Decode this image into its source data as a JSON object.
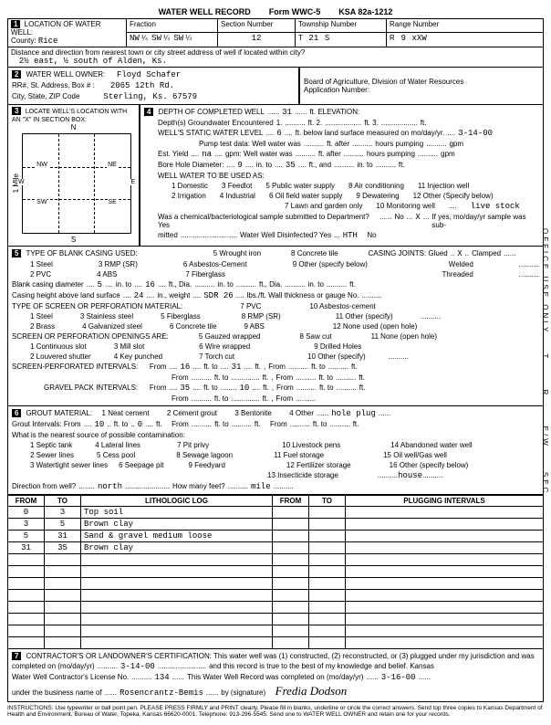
{
  "form": {
    "title": "WATER WELL RECORD",
    "form_no": "Form WWC-5",
    "statute": "KSA 82a-1212"
  },
  "loc": {
    "county_label": "County:",
    "county": "Rice",
    "fraction_label": "Fraction",
    "fraction1": "NW",
    "f1q": "¼",
    "fraction2": "SW",
    "f2q": "¼",
    "fraction3": "SW",
    "f3q": "¼",
    "section_label": "Section Number",
    "section": "12",
    "township_label": "Township Number",
    "township_t": "T",
    "township": "21",
    "township_s": "S",
    "range_label": "Range Number",
    "range_r": "R",
    "range": "9",
    "range_w": "xXW",
    "distance_label": "Distance and direction from nearest town or city street address of well if located within city?",
    "distance": "2½ east, ½ south of Alden, Ks."
  },
  "owner": {
    "label": "WATER WELL OWNER:",
    "rr_label": "RR#, St. Address, Box # :",
    "city_label": "City, State, ZIP Code",
    "name": "Floyd Schafer",
    "address": "2065 12th Rd.",
    "citystate": "Sterling, Ks.  67579",
    "board": "Board of Agriculture, Division of Water Resources",
    "app_label": "Application Number:"
  },
  "sec3": {
    "label": "LOCATE WELL'S LOCATION WITH AN \"X\" IN SECTION BOX:",
    "n": "N",
    "s": "S",
    "e": "E",
    "w": "W",
    "nw": "NW",
    "ne": "NE",
    "sw": "SW",
    "se": "SE",
    "mile": "1 Mile"
  },
  "depth": {
    "label": "DEPTH OF COMPLETED WELL",
    "completed": "31",
    "elev_label": "ft. ELEVATION:",
    "groundwater_label": "Depth(s) Groundwater Encountered",
    "g1": "1.",
    "g2": "ft. 2.",
    "g3": "ft. 3.",
    "g_end": "ft.",
    "static_label": "WELL'S STATIC WATER LEVEL",
    "static": "6",
    "static_suffix": "ft. below land surface measured on mo/day/yr.",
    "date": "3-14-00",
    "pump_label": "Pump test data:  Well water was",
    "pump_suffix": "ft. after",
    "hours": "hours pumping",
    "gpm": "gpm",
    "est_label": "Est. Yield",
    "na": "na",
    "gpm2": "gpm:  Well water was",
    "bore_label": "Bore Hole Diameter:",
    "bore1": "9",
    "bore1s": "in. to",
    "bore2": "35",
    "bore2s": "ft., and",
    "bore3": "in. to",
    "bore4": "ft.",
    "use_label": "WELL WATER TO BE USED AS:",
    "use1": "1 Domestic",
    "use2": "2 Irrigation",
    "use3": "3 Feedlot",
    "use4": "4 Industrial",
    "use5": "5 Public water supply",
    "use6": "6 Oil field water supply",
    "use7": "7 Lawn and garden only",
    "use8": "8 Air conditioning",
    "use9": "9 Dewatering",
    "use10": "10 Monitoring well",
    "use11": "11 Injection well",
    "use12": "12 Other (Specify below)",
    "use_other": "live stock",
    "chem_label": "Was a chemical/bacteriological sample submitted to Department?  Yes",
    "no": "No",
    "x": "X",
    "yes_suffix": "If yes, mo/day/yr sample was sub-",
    "mitted": "mitted",
    "disinfect": "Water Well Disinfected?  Yes",
    "hth": "HTH",
    "no2": "No"
  },
  "casing": {
    "label": "TYPE OF BLANK CASING USED:",
    "c1": "1 Steel",
    "c2": "2 PVC",
    "c3": "3 RMP (SR)",
    "c4": "4 ABS",
    "c5": "5 Wrought iron",
    "c6": "6 Asbestos-Cement",
    "c7": "7 Fiberglass",
    "c8": "8 Concrete tile",
    "c9": "9 Other (specify below)",
    "joints_label": "CASING JOINTS: Glued",
    "jx": "X",
    "clamped": "Clamped",
    "welded": "Welded",
    "threaded": "Threaded",
    "blank_label": "Blank casing diameter",
    "bd": "5",
    "bd_in": "in. to",
    "bd2": "16",
    "bd_ft": "ft., Dia.",
    "bd_in2": "in. to",
    "bd_ft2": "ft., Dia.",
    "bd_in3": "in. to",
    "bd_ft3": "ft.",
    "height_label": "Casing height above land surface",
    "h": "24",
    "h_in": "in., weight",
    "sdr": "SDR 26",
    "lbs": "lbs./ft. Wall thickness or gauge No.",
    "screen_label": "TYPE OF SCREEN OR PERFORATION MATERIAL:",
    "s1": "1 Steel",
    "s2": "2 Brass",
    "s3": "3 Stainless steel",
    "s4": "4 Galvanized steel",
    "s5": "5 Fiberglass",
    "s6": "6 Concrete tile",
    "s7": "7 PVC",
    "s8": "8 RMP (SR)",
    "s9": "9 ABS",
    "s10": "10 Asbestos-cement",
    "s11": "11 Other (specify)",
    "s12": "12 None used (open hole)",
    "open_label": "SCREEN OR PERFORATION OPENINGS ARE:",
    "o1": "1 Continuous slot",
    "o2": "2 Louvered shutter",
    "o3": "3 Mill slot",
    "o4": "4 Key punched",
    "o5": "5 Gauzed wrapped",
    "o6": "6 Wire wrapped",
    "o7": "7 Torch cut",
    "o8": "8 Saw cut",
    "o9": "9 Drilled Holes",
    "o10": "10 Other (specify)",
    "o11": "11 None (open hole)",
    "perf_label": "SCREEN-PERFORATED INTERVALS:",
    "from_l": "From",
    "to_l": "ft. to",
    "ft": "ft.",
    "p_from": "16",
    "p_to": "31",
    "gravel_label": "GRAVEL PACK INTERVALS:",
    "g_from": "35",
    "g_to": "10"
  },
  "grout": {
    "label": "GROUT MATERIAL:",
    "g1": "1 Neat cement",
    "g2": "2 Cement grout",
    "g3": "3 Bentonite",
    "g4": "4 Other",
    "other": "hole plug",
    "int_label": "Grout Intervals:  From",
    "i_from": "10",
    "i_to": "0",
    "to_l": "ft. to",
    "ft": "ft.",
    "from_l": "From",
    "contam_label": "What is the nearest source of possible contamination:",
    "c1": "1 Septic tank",
    "c2": "2 Sewer lines",
    "c3": "3 Watertight sewer lines",
    "c4": "4 Lateral lines",
    "c5": "5 Cess pool",
    "c6": "6 Seepage pit",
    "c7": "7 Pit privy",
    "c8": "8 Sewage lagoon",
    "c9": "9 Feedyard",
    "c10": "10 Livestock pens",
    "c11": "11 Fuel storage",
    "c12": "12 Fertilizer storage",
    "c13": "13 Insecticide storage",
    "c14": "14 Abandoned water well",
    "c15": "15 Oil well/Gas well",
    "c16": "16 Other (specify below)",
    "c_other": "house",
    "dir_label": "Direction from well?",
    "dir": "north",
    "many_label": "How many feet?",
    "many": "mile"
  },
  "log": {
    "h1": "FROM",
    "h2": "TO",
    "h3": "LITHOLOGIC LOG",
    "h4": "FROM",
    "h5": "TO",
    "h6": "PLUGGING INTERVALS",
    "rows": [
      {
        "from": "0",
        "to": "3",
        "lith": "Top soil"
      },
      {
        "from": "3",
        "to": "5",
        "lith": "Brown clay"
      },
      {
        "from": "5",
        "to": "31",
        "lith": "Sand & gravel medium loose"
      },
      {
        "from": "31",
        "to": "35",
        "lith": "Brown clay"
      }
    ]
  },
  "cert": {
    "label": "CONTRACTOR'S OR LANDOWNER'S CERTIFICATION: This water well was (1) constructed, (2) reconstructed, or (3) plugged under my jurisdiction and was",
    "completed_label": "completed on (mo/day/yr)",
    "date": "3-14-00",
    "suffix": "and this record is true to the best of my knowledge and belief. Kansas",
    "lic_label": "Water Well Contractor's License No.",
    "lic": "134",
    "rec_label": "This Water Well Record was completed on (mo/day/yr)",
    "date2": "3-16-00",
    "business_label": "under the business name of",
    "business": "Rosencrantz-Bemis",
    "by_label": "by (signature)",
    "sig": "Fredia Dodson"
  },
  "side": {
    "office": "OFFICE USE ONLY",
    "t": "T",
    "r": "R",
    "ew": "E/W",
    "sec": "SEC"
  },
  "instr": "INSTRUCTIONS: Use typewriter or ball point pen. PLEASE PRESS FIRMLY and PRINT clearly. Please fill in blanks, underline or circle the correct answers. Send top three copies to Kansas Department of Health and Environment, Bureau of Water, Topeka, Kansas 66620-0001. Telephone: 913-296-5545. Send one to WATER WELL OWNER and retain one for your records."
}
